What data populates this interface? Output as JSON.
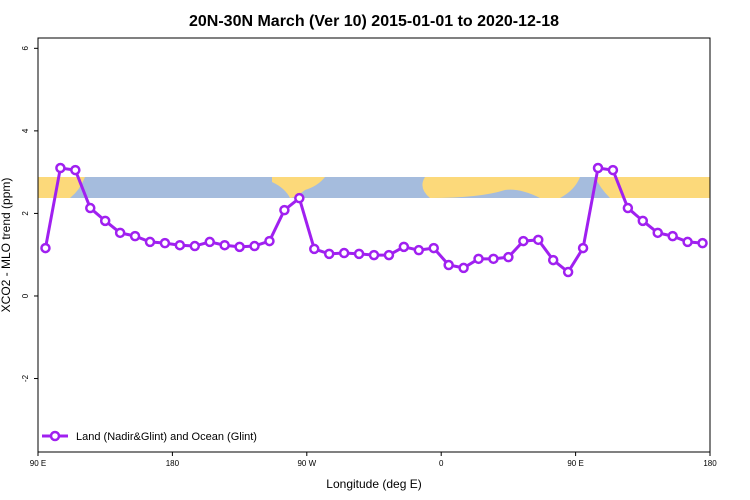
{
  "chart_data": {
    "type": "line",
    "title": "20N-30N March (Ver 10)   2015-01-01 to 2020-12-18",
    "x_label": "Longitude (deg E)",
    "y_label": "XCO2 - MLO trend (ppm)",
    "x": [
      95,
      105,
      115,
      125,
      135,
      145,
      155,
      165,
      175,
      185,
      195,
      205,
      215,
      225,
      235,
      245,
      255,
      265,
      275,
      285,
      295,
      305,
      315,
      325,
      335,
      345,
      355,
      365,
      375,
      385,
      395,
      405,
      415,
      425,
      435,
      445,
      455,
      465,
      475,
      485,
      495,
      505,
      515,
      525,
      535
    ],
    "series": [
      {
        "name": "Land (Nadir&Glint) and Ocean (Glint)",
        "color": "#a020f0",
        "values": [
          1.16,
          3.1,
          3.05,
          2.13,
          1.82,
          1.53,
          1.45,
          1.31,
          1.28,
          1.23,
          1.21,
          1.31,
          1.23,
          1.19,
          1.21,
          1.33,
          2.08,
          2.37,
          1.14,
          1.02,
          1.04,
          1.02,
          0.99,
          0.99,
          1.19,
          1.11,
          1.16,
          0.75,
          0.68,
          0.9,
          0.9,
          0.94,
          1.33,
          1.36,
          0.87,
          0.58,
          1.16,
          3.1,
          3.05,
          2.13,
          1.82,
          1.53,
          1.45,
          1.31,
          1.28
        ]
      }
    ],
    "xlim": [
      90,
      540
    ],
    "xticks": [
      {
        "value": 90,
        "label": "90 E"
      },
      {
        "value": 180,
        "label": "180"
      },
      {
        "value": 270,
        "label": "90 W"
      },
      {
        "value": 360,
        "label": "0"
      },
      {
        "value": 450,
        "label": "90 E"
      },
      {
        "value": 540,
        "label": "180"
      }
    ],
    "ylim": [
      -3.78,
      6.25
    ],
    "yticks": [
      -2,
      0,
      2,
      4,
      6
    ],
    "legend_position": "bottom-left"
  }
}
